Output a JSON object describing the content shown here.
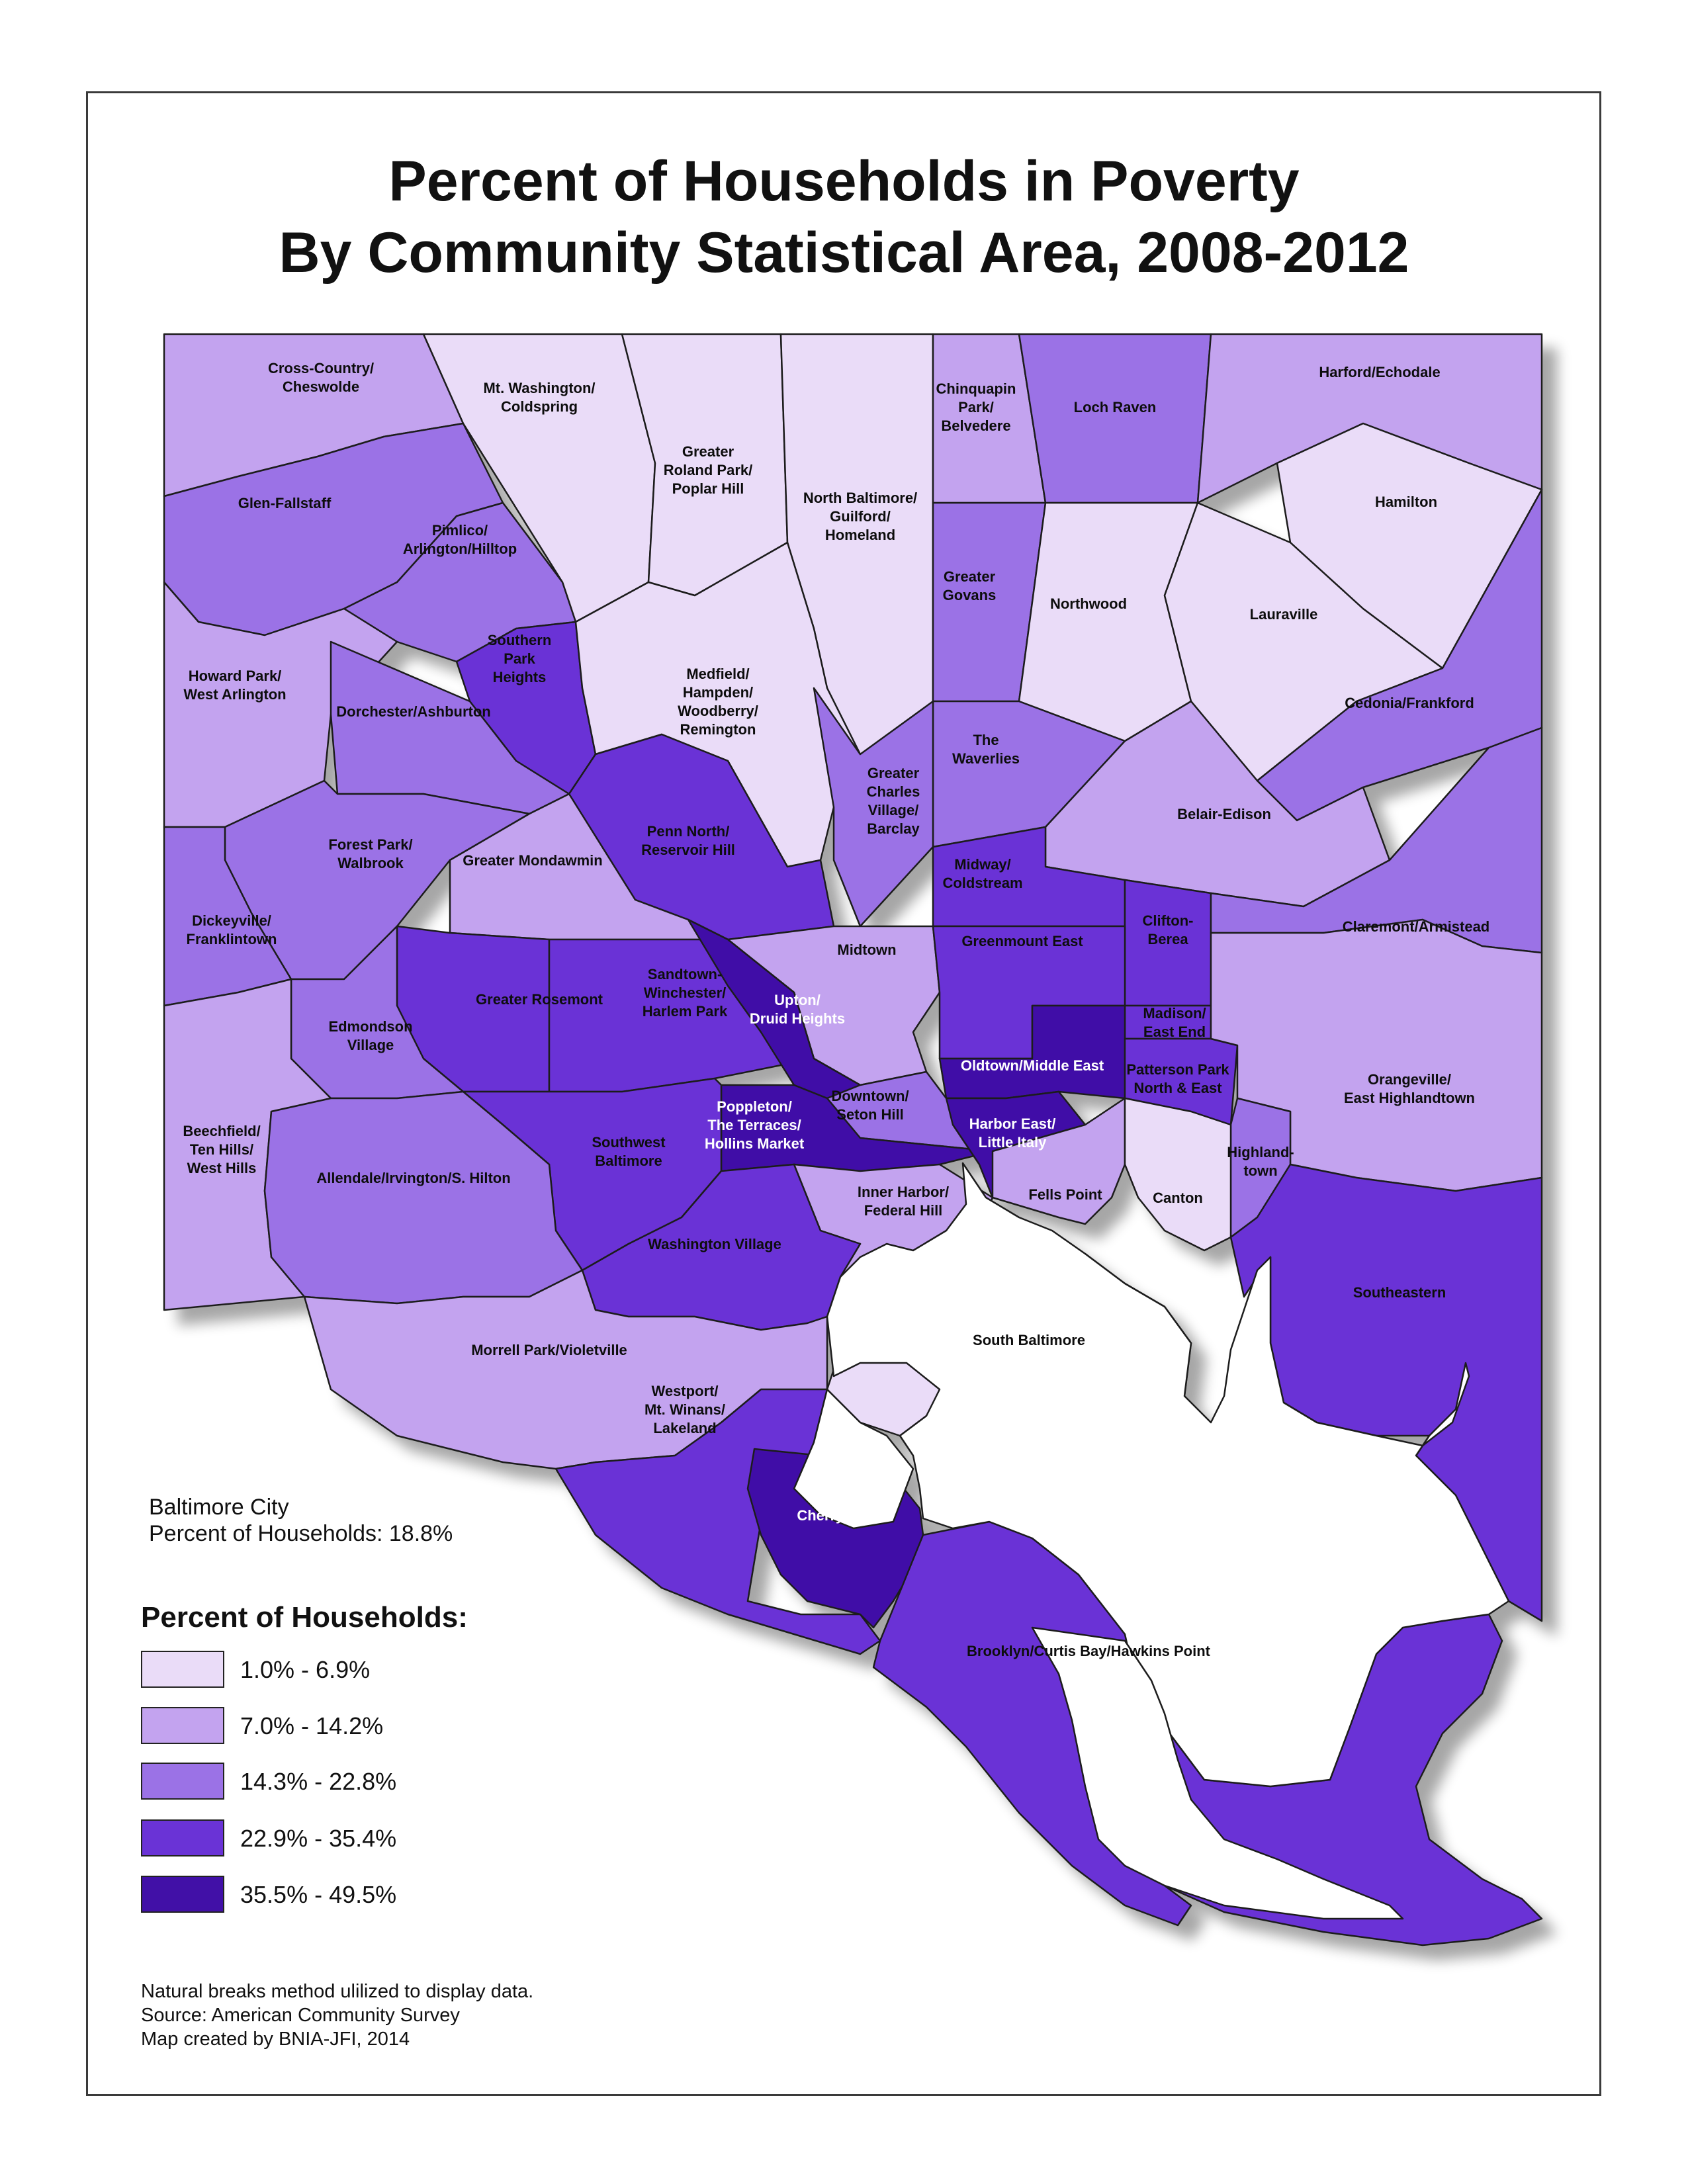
{
  "title": {
    "line1": "Percent of Households in Poverty",
    "line2": "By Community Statistical Area, 2008-2012"
  },
  "colors": {
    "c1": "#eadcf8",
    "c2": "#c3a3ef",
    "c3": "#9b72e6",
    "c4": "#6a33d6",
    "c5": "#4110a7",
    "water": "#ffffff",
    "outline": "#1e1e1e"
  },
  "summary": {
    "line1": "Baltimore City",
    "line2": "Percent of Households: 18.8%"
  },
  "legend": {
    "title": "Percent of Households:",
    "items": [
      {
        "label": "1.0% - 6.9%",
        "class": "c1"
      },
      {
        "label": "7.0% - 14.2%",
        "class": "c2"
      },
      {
        "label": "14.3% - 22.8%",
        "class": "c3"
      },
      {
        "label": "22.9% - 35.4%",
        "class": "c4"
      },
      {
        "label": "35.5% - 49.5%",
        "class": "c5"
      }
    ]
  },
  "notes": [
    "Natural breaks method ulilized to display data.",
    "Source: American Community Survey",
    "Map created by BNIA-JFI, 2014"
  ],
  "regions": [
    {
      "name": "Cross-Country/Cheswolde",
      "lines": [
        "Cross-Country/",
        "Cheswolde"
      ],
      "class": "c2"
    },
    {
      "name": "Mt. Washington/Coldspring",
      "lines": [
        "Mt. Washington/",
        "Coldspring"
      ],
      "class": "c1"
    },
    {
      "name": "Greater Roland Park/Poplar Hill",
      "lines": [
        "Greater",
        "Roland Park/",
        "Poplar Hill"
      ],
      "class": "c1"
    },
    {
      "name": "North Baltimore/Guilford/Homeland",
      "lines": [
        "North Baltimore/",
        "Guilford/",
        "Homeland"
      ],
      "class": "c1"
    },
    {
      "name": "Chinquapin Park/Belvedere",
      "lines": [
        "Chinquapin",
        "Park/",
        "Belvedere"
      ],
      "class": "c2"
    },
    {
      "name": "Loch Raven",
      "lines": [
        "Loch Raven"
      ],
      "class": "c3"
    },
    {
      "name": "Harford/Echodale",
      "lines": [
        "Harford/Echodale"
      ],
      "class": "c2"
    },
    {
      "name": "Glen-Fallstaff",
      "lines": [
        "Glen-Fallstaff"
      ],
      "class": "c3"
    },
    {
      "name": "Pimlico/Arlington/Hilltop",
      "lines": [
        "Pimlico/",
        "Arlington/Hilltop"
      ],
      "class": "c3"
    },
    {
      "name": "Hamilton",
      "lines": [
        "Hamilton"
      ],
      "class": "c1"
    },
    {
      "name": "Greater Govans",
      "lines": [
        "Greater",
        "Govans"
      ],
      "class": "c3"
    },
    {
      "name": "Northwood",
      "lines": [
        "Northwood"
      ],
      "class": "c1"
    },
    {
      "name": "Lauraville",
      "lines": [
        "Lauraville"
      ],
      "class": "c1"
    },
    {
      "name": "Southern Park Heights",
      "lines": [
        "Southern",
        "Park",
        "Heights"
      ],
      "class": "c4"
    },
    {
      "name": "Howard Park/West Arlington",
      "lines": [
        "Howard Park/",
        "West Arlington"
      ],
      "class": "c2"
    },
    {
      "name": "Medfield/Hampden/Woodberry/Remington",
      "lines": [
        "Medfield/",
        "Hampden/",
        "Woodberry/",
        "Remington"
      ],
      "class": "c1"
    },
    {
      "name": "Dorchester/Ashburton",
      "lines": [
        "Dorchester/Ashburton"
      ],
      "class": "c3"
    },
    {
      "name": "Cedonia/Frankford",
      "lines": [
        "Cedonia/Frankford"
      ],
      "class": "c3"
    },
    {
      "name": "The Waverlies",
      "lines": [
        "The",
        "Waverlies"
      ],
      "class": "c3"
    },
    {
      "name": "Greater Charles Village/Barclay",
      "lines": [
        "Greater",
        "Charles",
        "Village/",
        "Barclay"
      ],
      "class": "c3"
    },
    {
      "name": "Belair-Edison",
      "lines": [
        "Belair-Edison"
      ],
      "class": "c2"
    },
    {
      "name": "Forest Park/Walbrook",
      "lines": [
        "Forest Park/",
        "Walbrook"
      ],
      "class": "c3"
    },
    {
      "name": "Penn North/Reservoir Hill",
      "lines": [
        "Penn North/",
        "Reservoir Hill"
      ],
      "class": "c4"
    },
    {
      "name": "Greater Mondawmin",
      "lines": [
        "Greater Mondawmin"
      ],
      "class": "c2"
    },
    {
      "name": "Midway/Coldstream",
      "lines": [
        "Midway/",
        "Coldstream"
      ],
      "class": "c4"
    },
    {
      "name": "Clifton-Berea",
      "lines": [
        "Clifton-",
        "Berea"
      ],
      "class": "c4"
    },
    {
      "name": "Claremont/Armistead",
      "lines": [
        "Claremont/Armistead"
      ],
      "class": "c3"
    },
    {
      "name": "Dickeyville/Franklintown",
      "lines": [
        "Dickeyville/",
        "Franklintown"
      ],
      "class": "c3"
    },
    {
      "name": "Midtown",
      "lines": [
        "Midtown"
      ],
      "class": "c2"
    },
    {
      "name": "Greenmount East",
      "lines": [
        "Greenmount East"
      ],
      "class": "c4"
    },
    {
      "name": "Greater Rosemont",
      "lines": [
        "Greater Rosemont"
      ],
      "class": "c4"
    },
    {
      "name": "Sandtown-Winchester/Harlem Park",
      "lines": [
        "Sandtown-",
        "Winchester/",
        "Harlem Park"
      ],
      "class": "c4"
    },
    {
      "name": "Upton/Druid Heights",
      "lines": [
        "Upton/",
        "Druid Heights"
      ],
      "class": "c5"
    },
    {
      "name": "Edmondson Village",
      "lines": [
        "Edmondson",
        "Village"
      ],
      "class": "c3"
    },
    {
      "name": "Madison/East End",
      "lines": [
        "Madison/",
        "East End"
      ],
      "class": "c4"
    },
    {
      "name": "Oldtown/Middle East",
      "lines": [
        "Oldtown/Middle East"
      ],
      "class": "c5"
    },
    {
      "name": "Patterson Park North & East",
      "lines": [
        "Patterson Park",
        "North & East"
      ],
      "class": "c4"
    },
    {
      "name": "Orangeville/East Highlandtown",
      "lines": [
        "Orangeville/",
        "East Highlandtown"
      ],
      "class": "c2"
    },
    {
      "name": "Downtown/Seton Hill",
      "lines": [
        "Downtown/",
        "Seton Hill"
      ],
      "class": "c3"
    },
    {
      "name": "Poppleton/The Terraces/Hollins Market",
      "lines": [
        "Poppleton/",
        "The Terraces/",
        "Hollins Market"
      ],
      "class": "c5"
    },
    {
      "name": "Harbor East/Little Italy",
      "lines": [
        "Harbor East/",
        "Little Italy"
      ],
      "class": "c5"
    },
    {
      "name": "Beechfield/Ten Hills/West Hills",
      "lines": [
        "Beechfield/",
        "Ten Hills/",
        "West Hills"
      ],
      "class": "c2"
    },
    {
      "name": "Southwest Baltimore",
      "lines": [
        "Southwest",
        "Baltimore"
      ],
      "class": "c4"
    },
    {
      "name": "Allendale/Irvington/S. Hilton",
      "lines": [
        "Allendale/Irvington/S. Hilton"
      ],
      "class": "c3"
    },
    {
      "name": "Highlandtown",
      "lines": [
        "Highland-",
        "town"
      ],
      "class": "c3"
    },
    {
      "name": "Inner Harbor/Federal Hill",
      "lines": [
        "Inner Harbor/",
        "Federal Hill"
      ],
      "class": "c2"
    },
    {
      "name": "Fells Point",
      "lines": [
        "Fells Point"
      ],
      "class": "c2"
    },
    {
      "name": "Canton",
      "lines": [
        "Canton"
      ],
      "class": "c1"
    },
    {
      "name": "Washington Village",
      "lines": [
        "Washington Village"
      ],
      "class": "c4"
    },
    {
      "name": "Southeastern",
      "lines": [
        "Southeastern"
      ],
      "class": "c4"
    },
    {
      "name": "South Baltimore",
      "lines": [
        "South Baltimore"
      ],
      "class": "c1"
    },
    {
      "name": "Morrell Park/Violetville",
      "lines": [
        "Morrell Park/Violetville"
      ],
      "class": "c2"
    },
    {
      "name": "Westport/Mt. Winans/Lakeland",
      "lines": [
        "Westport/",
        "Mt. Winans/",
        "Lakeland"
      ],
      "class": "c4"
    },
    {
      "name": "Cherry Hill",
      "lines": [
        "Cherry Hill"
      ],
      "class": "c5"
    },
    {
      "name": "Brooklyn/Curtis Bay/Hawkins Point",
      "lines": [
        "Brooklyn/Curtis Bay/Hawkins Point"
      ],
      "class": "c4"
    }
  ]
}
